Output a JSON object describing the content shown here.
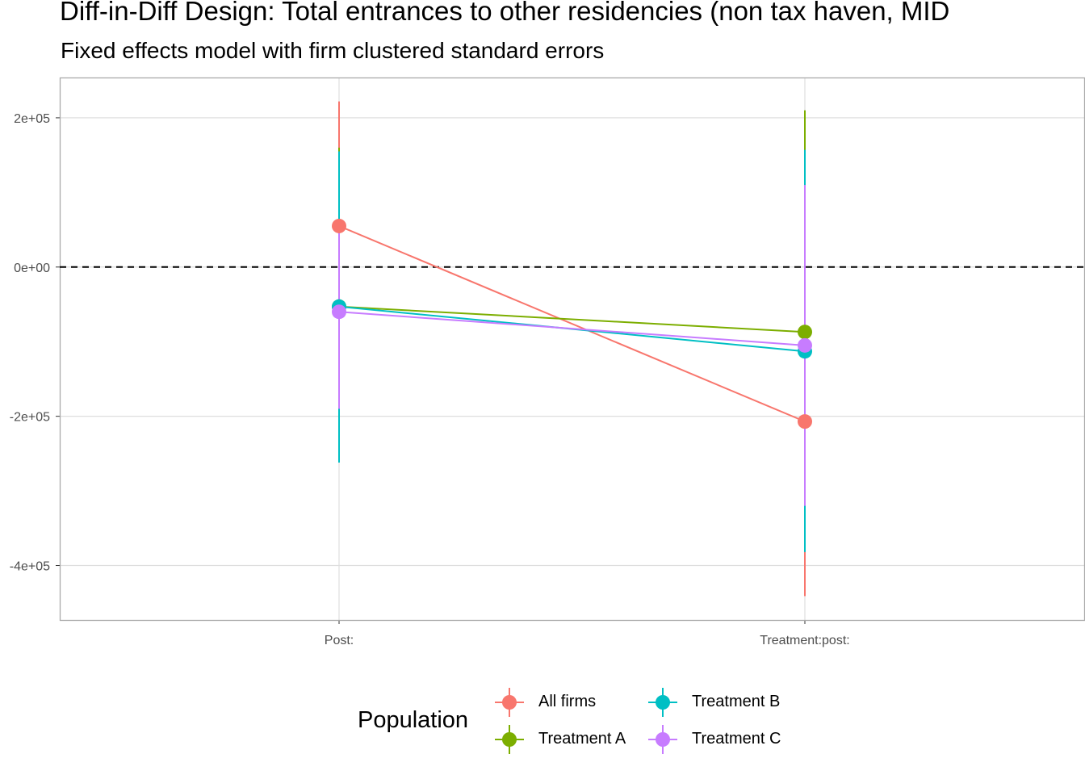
{
  "title": "Diff-in-Diff Design: Total entrances to other residencies (non tax haven, MID",
  "subtitle": "Fixed effects model with firm clustered standard errors",
  "chart_data": {
    "type": "line",
    "categories": [
      "Post:",
      "Treatment:post:"
    ],
    "ylim": [
      -473000,
      254000
    ],
    "yticks": [
      200000,
      0,
      -200000,
      -400000
    ],
    "ytick_labels": [
      "2e+05",
      "0e+00",
      "-2e+05",
      "-4e+05"
    ],
    "reference_line": {
      "y": 0,
      "style": "dashed",
      "color": "#000000"
    },
    "grid": true,
    "legend": {
      "title": "Population",
      "position": "bottom"
    },
    "series": [
      {
        "name": "All firms",
        "color": "#F8766D",
        "values": [
          55000,
          -207000
        ],
        "lower": [
          -110000,
          -441000
        ],
        "upper": [
          222000,
          -381000
        ]
      },
      {
        "name": "Treatment A",
        "color": "#7CAE00",
        "values": [
          -53000,
          -87000
        ],
        "lower": [
          -100000,
          -150000
        ],
        "upper": [
          160000,
          210000
        ]
      },
      {
        "name": "Treatment B",
        "color": "#00BFC4",
        "values": [
          -53000,
          -113000
        ],
        "lower": [
          -262000,
          -382000
        ],
        "upper": [
          155000,
          157000
        ]
      },
      {
        "name": "Treatment C",
        "color": "#C77CFF",
        "values": [
          -60000,
          -105000
        ],
        "lower": [
          -190000,
          -320000
        ],
        "upper": [
          63000,
          110000
        ]
      }
    ]
  }
}
